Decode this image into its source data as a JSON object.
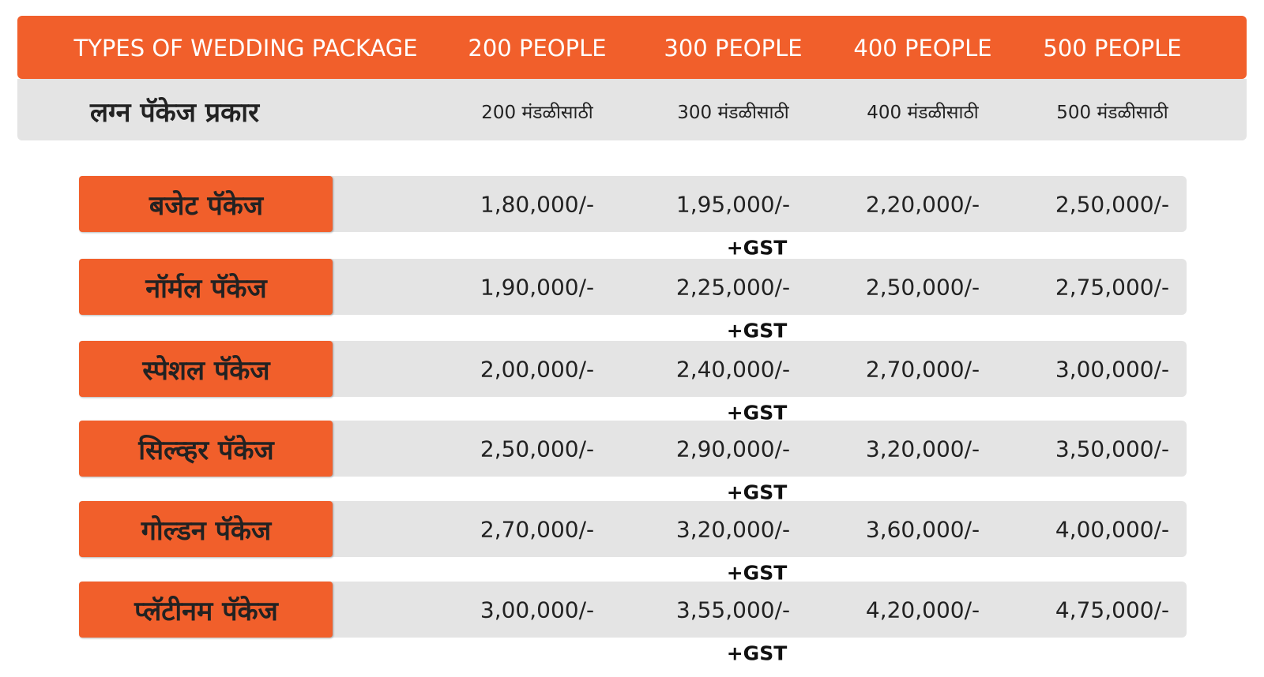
{
  "header": {
    "columns": [
      "TYPES OF WEDDING PACKAGE",
      "200 PEOPLE",
      "300 PEOPLE",
      "400 PEOPLE",
      "500 PEOPLE"
    ],
    "subcolumns": [
      "लग्न पॅकेज प्रकार",
      "200 मंडळीसाठी",
      "300 मंडळीसाठी",
      "400 मंडळीसाठी",
      "500 मंडळीसाठी"
    ]
  },
  "rows": [
    {
      "name": "बजेट पॅकेज",
      "prices": [
        "1,80,000/-",
        "1,95,000/-",
        "2,20,000/-",
        "2,50,000/-"
      ],
      "note": "+GST"
    },
    {
      "name": "नॉर्मल पॅकेज",
      "prices": [
        "1,90,000/-",
        "2,25,000/-",
        "2,50,000/-",
        "2,75,000/-"
      ],
      "note": "+GST"
    },
    {
      "name": "स्पेशल पॅकेज",
      "prices": [
        "2,00,000/-",
        "2,40,000/-",
        "2,70,000/-",
        "3,00,000/-"
      ],
      "note": "+GST"
    },
    {
      "name": "सिल्व्हर पॅकेज",
      "prices": [
        "2,50,000/-",
        "2,90,000/-",
        "3,20,000/-",
        "3,50,000/-"
      ],
      "note": "+GST"
    },
    {
      "name": "गोल्डन पॅकेज",
      "prices": [
        "2,70,000/-",
        "3,20,000/-",
        "3,60,000/-",
        "4,00,000/-"
      ],
      "note": "+GST"
    },
    {
      "name": "प्लॅटीनम पॅकेज",
      "prices": [
        "3,00,000/-",
        "3,55,000/-",
        "4,20,000/-",
        "4,75,000/-"
      ],
      "note": "+GST"
    }
  ]
}
